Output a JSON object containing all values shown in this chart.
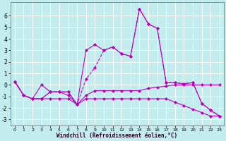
{
  "xlabel": "Windchill (Refroidissement éolien,°C)",
  "background_color": "#c2ecee",
  "grid_color": "#ffffff",
  "line_color": "#bb00bb",
  "xlim": [
    -0.5,
    23.5
  ],
  "ylim": [
    -3.5,
    7.2
  ],
  "yticks": [
    -3,
    -2,
    -1,
    0,
    1,
    2,
    3,
    4,
    5,
    6
  ],
  "xticks": [
    0,
    1,
    2,
    3,
    4,
    5,
    6,
    7,
    8,
    9,
    10,
    11,
    12,
    13,
    14,
    15,
    16,
    17,
    18,
    19,
    20,
    21,
    22,
    23
  ],
  "series": [
    {
      "x": [
        0,
        1,
        2,
        3,
        4,
        5,
        6,
        7,
        8,
        9,
        10,
        11,
        12,
        13,
        14,
        15,
        16,
        17,
        18,
        19,
        20,
        21,
        22,
        23
      ],
      "y": [
        0.3,
        -0.9,
        -1.2,
        -1.2,
        -1.2,
        -1.2,
        -1.2,
        -1.7,
        -1.2,
        -1.2,
        -1.2,
        -1.2,
        -1.2,
        -1.2,
        -1.2,
        -1.2,
        -1.2,
        -1.2,
        -1.5,
        -1.8,
        -2.1,
        -2.4,
        -2.7,
        -2.7
      ],
      "linestyle": "-",
      "marker": "D",
      "markersize": 2,
      "linewidth": 0.8
    },
    {
      "x": [
        0,
        1,
        2,
        3,
        4,
        5,
        6,
        7,
        8,
        9,
        10,
        11,
        12,
        13,
        14,
        15,
        16,
        17,
        18,
        19,
        20,
        21,
        22,
        23
      ],
      "y": [
        0.3,
        -0.9,
        -1.2,
        -1.2,
        -0.6,
        -0.6,
        -0.6,
        -1.7,
        -0.9,
        -0.5,
        -0.5,
        -0.5,
        -0.5,
        -0.5,
        -0.5,
        -0.3,
        -0.2,
        -0.1,
        0.0,
        0.0,
        0.0,
        0.0,
        0.0,
        0.0
      ],
      "linestyle": "-",
      "marker": "D",
      "markersize": 2,
      "linewidth": 0.8
    },
    {
      "x": [
        0,
        1,
        2,
        3,
        4,
        5,
        6,
        7,
        8,
        9,
        10,
        11,
        12,
        13,
        14,
        15,
        16,
        17,
        18,
        19,
        20,
        21,
        22,
        23
      ],
      "y": [
        0.3,
        -0.9,
        -1.2,
        -1.2,
        -0.6,
        -0.6,
        -0.6,
        -1.7,
        0.5,
        1.5,
        3.0,
        3.3,
        2.7,
        2.5,
        6.6,
        5.3,
        4.9,
        0.2,
        0.2,
        0.1,
        0.2,
        -1.6,
        -2.2,
        -2.7
      ],
      "linestyle": "--",
      "marker": "D",
      "markersize": 2,
      "linewidth": 0.8
    },
    {
      "x": [
        0,
        1,
        2,
        3,
        4,
        5,
        6,
        7,
        8,
        9,
        10,
        11,
        12,
        13,
        14,
        15,
        16,
        17,
        18,
        19,
        20,
        21,
        22,
        23
      ],
      "y": [
        0.3,
        -0.9,
        -1.2,
        0.0,
        -0.6,
        -0.6,
        -0.9,
        -1.7,
        3.0,
        3.5,
        3.0,
        3.3,
        2.7,
        2.5,
        6.6,
        5.3,
        4.9,
        0.2,
        0.2,
        0.1,
        0.2,
        -1.6,
        -2.2,
        -2.7
      ],
      "linestyle": "-",
      "marker": "D",
      "markersize": 2,
      "linewidth": 0.8
    }
  ]
}
